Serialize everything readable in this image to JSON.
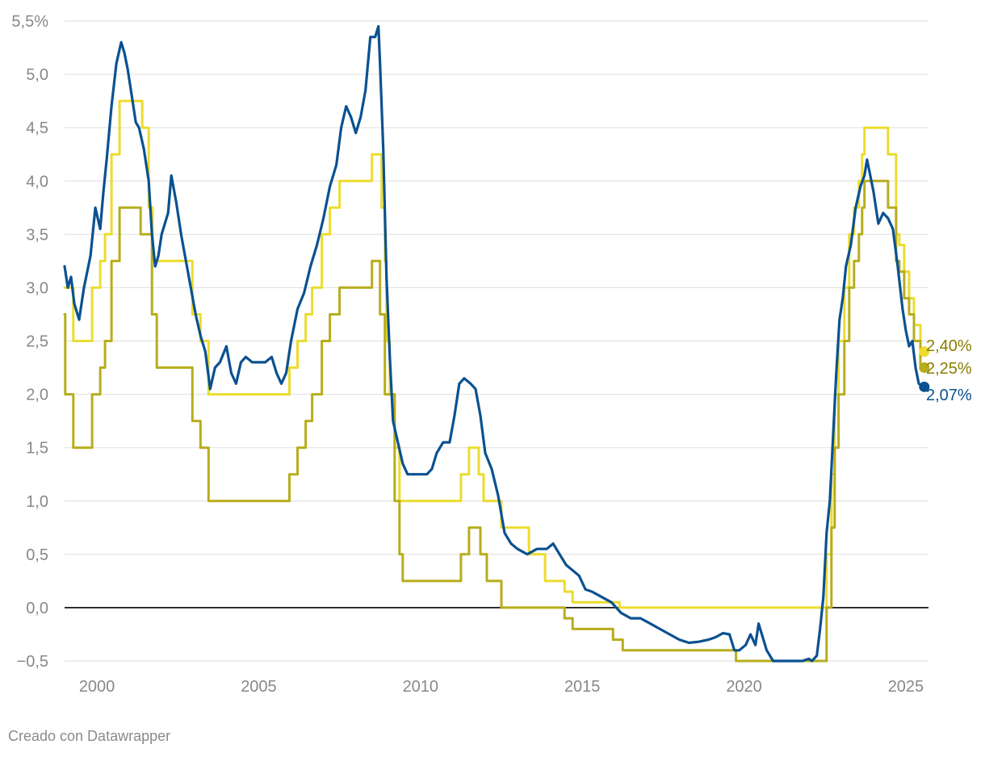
{
  "footer": {
    "credit": "Creado con Datawrapper"
  },
  "chart_data": {
    "type": "line",
    "title": "",
    "xlabel": "",
    "ylabel": "",
    "xlim": [
      1999,
      2025.7
    ],
    "ylim": [
      -0.5,
      5.5
    ],
    "grid": true,
    "legend": "none",
    "y_ticks": [
      {
        "value": 5.5,
        "label": "5,5%"
      },
      {
        "value": 5.0,
        "label": "5,0"
      },
      {
        "value": 4.5,
        "label": "4,5"
      },
      {
        "value": 4.0,
        "label": "4,0"
      },
      {
        "value": 3.5,
        "label": "3,5"
      },
      {
        "value": 3.0,
        "label": "3,0"
      },
      {
        "value": 2.5,
        "label": "2,5"
      },
      {
        "value": 2.0,
        "label": "2,0"
      },
      {
        "value": 1.5,
        "label": "1,5"
      },
      {
        "value": 1.0,
        "label": "1,0"
      },
      {
        "value": 0.5,
        "label": "0,5"
      },
      {
        "value": 0.0,
        "label": "0,0"
      },
      {
        "value": -0.5,
        "label": "−0,5"
      }
    ],
    "x_ticks": [
      {
        "value": 2000,
        "label": "2000"
      },
      {
        "value": 2005,
        "label": "2005"
      },
      {
        "value": 2010,
        "label": "2010"
      },
      {
        "value": 2015,
        "label": "2015"
      },
      {
        "value": 2020,
        "label": "2020"
      },
      {
        "value": 2025,
        "label": "2025"
      }
    ],
    "series": [
      {
        "color": "#ebdc2e",
        "style": "step",
        "end_label": "2,40%",
        "end_label_color": "#8a7d00",
        "points": [
          [
            1999.0,
            3.0
          ],
          [
            1999.27,
            2.5
          ],
          [
            1999.85,
            3.0
          ],
          [
            2000.1,
            3.25
          ],
          [
            2000.25,
            3.5
          ],
          [
            2000.45,
            4.25
          ],
          [
            2000.7,
            4.75
          ],
          [
            2001.4,
            4.5
          ],
          [
            2001.6,
            3.75
          ],
          [
            2001.72,
            3.25
          ],
          [
            2002.95,
            2.75
          ],
          [
            2003.2,
            2.5
          ],
          [
            2003.45,
            2.0
          ],
          [
            2005.95,
            2.25
          ],
          [
            2006.2,
            2.5
          ],
          [
            2006.45,
            2.75
          ],
          [
            2006.65,
            3.0
          ],
          [
            2006.95,
            3.5
          ],
          [
            2007.2,
            3.75
          ],
          [
            2007.5,
            4.0
          ],
          [
            2008.5,
            4.25
          ],
          [
            2008.8,
            3.75
          ],
          [
            2008.9,
            3.25
          ],
          [
            2008.95,
            2.5
          ],
          [
            2009.05,
            2.0
          ],
          [
            2009.2,
            1.5
          ],
          [
            2009.35,
            1.0
          ],
          [
            2011.25,
            1.25
          ],
          [
            2011.5,
            1.5
          ],
          [
            2011.8,
            1.25
          ],
          [
            2011.95,
            1.0
          ],
          [
            2012.5,
            0.75
          ],
          [
            2013.35,
            0.5
          ],
          [
            2013.85,
            0.25
          ],
          [
            2014.45,
            0.15
          ],
          [
            2014.7,
            0.05
          ],
          [
            2016.15,
            0.0
          ],
          [
            2022.55,
            0.5
          ],
          [
            2022.7,
            1.25
          ],
          [
            2022.8,
            2.0
          ],
          [
            2022.92,
            2.5
          ],
          [
            2023.1,
            3.0
          ],
          [
            2023.25,
            3.5
          ],
          [
            2023.4,
            3.75
          ],
          [
            2023.55,
            4.0
          ],
          [
            2023.65,
            4.25
          ],
          [
            2023.72,
            4.5
          ],
          [
            2024.45,
            4.25
          ],
          [
            2024.7,
            3.5
          ],
          [
            2024.8,
            3.4
          ],
          [
            2024.95,
            3.15
          ],
          [
            2025.1,
            2.9
          ],
          [
            2025.25,
            2.65
          ],
          [
            2025.45,
            2.4
          ],
          [
            2025.52,
            2.4
          ]
        ]
      },
      {
        "color": "#b7ad1c",
        "style": "step",
        "end_label": "2,25%",
        "end_label_color": "#8a7d00",
        "points": [
          [
            1999.0,
            2.75
          ],
          [
            1999.02,
            2.0
          ],
          [
            1999.27,
            1.5
          ],
          [
            1999.85,
            2.0
          ],
          [
            2000.1,
            2.25
          ],
          [
            2000.25,
            2.5
          ],
          [
            2000.45,
            3.25
          ],
          [
            2000.7,
            3.75
          ],
          [
            2001.35,
            3.5
          ],
          [
            2001.7,
            2.75
          ],
          [
            2001.85,
            2.25
          ],
          [
            2002.95,
            1.75
          ],
          [
            2003.2,
            1.5
          ],
          [
            2003.45,
            1.0
          ],
          [
            2005.95,
            1.25
          ],
          [
            2006.2,
            1.5
          ],
          [
            2006.45,
            1.75
          ],
          [
            2006.65,
            2.0
          ],
          [
            2006.95,
            2.5
          ],
          [
            2007.2,
            2.75
          ],
          [
            2007.5,
            3.0
          ],
          [
            2008.5,
            3.25
          ],
          [
            2008.75,
            2.75
          ],
          [
            2008.9,
            2.0
          ],
          [
            2009.2,
            1.0
          ],
          [
            2009.35,
            0.5
          ],
          [
            2009.45,
            0.25
          ],
          [
            2011.25,
            0.5
          ],
          [
            2011.5,
            0.75
          ],
          [
            2011.85,
            0.5
          ],
          [
            2012.05,
            0.25
          ],
          [
            2012.5,
            0.0
          ],
          [
            2014.45,
            -0.1
          ],
          [
            2014.7,
            -0.2
          ],
          [
            2015.95,
            -0.3
          ],
          [
            2016.25,
            -0.4
          ],
          [
            2019.75,
            -0.5
          ],
          [
            2022.55,
            0.0
          ],
          [
            2022.7,
            0.75
          ],
          [
            2022.8,
            1.5
          ],
          [
            2022.92,
            2.0
          ],
          [
            2023.1,
            2.5
          ],
          [
            2023.25,
            3.0
          ],
          [
            2023.4,
            3.25
          ],
          [
            2023.55,
            3.5
          ],
          [
            2023.65,
            3.75
          ],
          [
            2023.72,
            4.0
          ],
          [
            2024.45,
            3.75
          ],
          [
            2024.7,
            3.25
          ],
          [
            2024.8,
            3.15
          ],
          [
            2024.95,
            2.9
          ],
          [
            2025.1,
            2.75
          ],
          [
            2025.25,
            2.5
          ],
          [
            2025.45,
            2.25
          ],
          [
            2025.52,
            2.25
          ]
        ]
      },
      {
        "color": "#0b5191",
        "style": "line",
        "end_label": "2,07%",
        "end_label_color": "#0b5191",
        "points": [
          [
            1999.0,
            3.2
          ],
          [
            1999.1,
            3.0
          ],
          [
            1999.2,
            3.1
          ],
          [
            1999.3,
            2.85
          ],
          [
            1999.45,
            2.7
          ],
          [
            1999.6,
            3.0
          ],
          [
            1999.8,
            3.3
          ],
          [
            1999.95,
            3.75
          ],
          [
            2000.1,
            3.55
          ],
          [
            2000.2,
            3.9
          ],
          [
            2000.3,
            4.2
          ],
          [
            2000.45,
            4.7
          ],
          [
            2000.6,
            5.1
          ],
          [
            2000.75,
            5.3
          ],
          [
            2000.85,
            5.2
          ],
          [
            2000.95,
            5.05
          ],
          [
            2001.1,
            4.75
          ],
          [
            2001.2,
            4.55
          ],
          [
            2001.3,
            4.5
          ],
          [
            2001.45,
            4.3
          ],
          [
            2001.6,
            4.0
          ],
          [
            2001.7,
            3.5
          ],
          [
            2001.8,
            3.2
          ],
          [
            2001.9,
            3.3
          ],
          [
            2002.0,
            3.5
          ],
          [
            2002.2,
            3.7
          ],
          [
            2002.3,
            4.05
          ],
          [
            2002.45,
            3.8
          ],
          [
            2002.6,
            3.5
          ],
          [
            2002.75,
            3.25
          ],
          [
            2002.9,
            3.0
          ],
          [
            2003.05,
            2.75
          ],
          [
            2003.2,
            2.55
          ],
          [
            2003.35,
            2.4
          ],
          [
            2003.5,
            2.05
          ],
          [
            2003.65,
            2.25
          ],
          [
            2003.8,
            2.3
          ],
          [
            2004.0,
            2.45
          ],
          [
            2004.15,
            2.2
          ],
          [
            2004.3,
            2.1
          ],
          [
            2004.45,
            2.3
          ],
          [
            2004.6,
            2.35
          ],
          [
            2004.8,
            2.3
          ],
          [
            2005.0,
            2.3
          ],
          [
            2005.2,
            2.3
          ],
          [
            2005.4,
            2.35
          ],
          [
            2005.55,
            2.2
          ],
          [
            2005.7,
            2.1
          ],
          [
            2005.85,
            2.2
          ],
          [
            2006.0,
            2.5
          ],
          [
            2006.2,
            2.8
          ],
          [
            2006.4,
            2.95
          ],
          [
            2006.6,
            3.2
          ],
          [
            2006.8,
            3.4
          ],
          [
            2007.0,
            3.65
          ],
          [
            2007.2,
            3.95
          ],
          [
            2007.4,
            4.15
          ],
          [
            2007.55,
            4.5
          ],
          [
            2007.7,
            4.7
          ],
          [
            2007.85,
            4.6
          ],
          [
            2008.0,
            4.45
          ],
          [
            2008.15,
            4.6
          ],
          [
            2008.3,
            4.85
          ],
          [
            2008.45,
            5.35
          ],
          [
            2008.6,
            5.35
          ],
          [
            2008.7,
            5.45
          ],
          [
            2008.75,
            5.1
          ],
          [
            2008.85,
            4.3
          ],
          [
            2008.95,
            3.1
          ],
          [
            2009.05,
            2.35
          ],
          [
            2009.15,
            1.75
          ],
          [
            2009.3,
            1.55
          ],
          [
            2009.45,
            1.35
          ],
          [
            2009.6,
            1.25
          ],
          [
            2009.8,
            1.25
          ],
          [
            2010.0,
            1.25
          ],
          [
            2010.2,
            1.25
          ],
          [
            2010.35,
            1.3
          ],
          [
            2010.5,
            1.45
          ],
          [
            2010.7,
            1.55
          ],
          [
            2010.9,
            1.55
          ],
          [
            2011.05,
            1.8
          ],
          [
            2011.2,
            2.1
          ],
          [
            2011.35,
            2.15
          ],
          [
            2011.55,
            2.1
          ],
          [
            2011.7,
            2.05
          ],
          [
            2011.85,
            1.8
          ],
          [
            2012.0,
            1.45
          ],
          [
            2012.2,
            1.3
          ],
          [
            2012.4,
            1.05
          ],
          [
            2012.6,
            0.7
          ],
          [
            2012.8,
            0.6
          ],
          [
            2013.0,
            0.55
          ],
          [
            2013.3,
            0.5
          ],
          [
            2013.6,
            0.55
          ],
          [
            2013.9,
            0.55
          ],
          [
            2014.1,
            0.6
          ],
          [
            2014.3,
            0.5
          ],
          [
            2014.5,
            0.4
          ],
          [
            2014.7,
            0.35
          ],
          [
            2014.9,
            0.3
          ],
          [
            2015.1,
            0.17
          ],
          [
            2015.3,
            0.15
          ],
          [
            2015.6,
            0.1
          ],
          [
            2015.9,
            0.05
          ],
          [
            2016.2,
            -0.05
          ],
          [
            2016.5,
            -0.1
          ],
          [
            2016.8,
            -0.1
          ],
          [
            2017.1,
            -0.15
          ],
          [
            2017.4,
            -0.2
          ],
          [
            2017.7,
            -0.25
          ],
          [
            2018.0,
            -0.3
          ],
          [
            2018.3,
            -0.33
          ],
          [
            2018.6,
            -0.32
          ],
          [
            2018.9,
            -0.3
          ],
          [
            2019.1,
            -0.28
          ],
          [
            2019.35,
            -0.24
          ],
          [
            2019.55,
            -0.25
          ],
          [
            2019.7,
            -0.4
          ],
          [
            2019.85,
            -0.4
          ],
          [
            2020.05,
            -0.35
          ],
          [
            2020.2,
            -0.25
          ],
          [
            2020.35,
            -0.35
          ],
          [
            2020.45,
            -0.15
          ],
          [
            2020.55,
            -0.25
          ],
          [
            2020.7,
            -0.4
          ],
          [
            2020.9,
            -0.5
          ],
          [
            2021.2,
            -0.5
          ],
          [
            2021.5,
            -0.5
          ],
          [
            2021.8,
            -0.5
          ],
          [
            2022.0,
            -0.48
          ],
          [
            2022.1,
            -0.5
          ],
          [
            2022.25,
            -0.45
          ],
          [
            2022.35,
            -0.2
          ],
          [
            2022.45,
            0.1
          ],
          [
            2022.55,
            0.7
          ],
          [
            2022.65,
            1.0
          ],
          [
            2022.75,
            1.6
          ],
          [
            2022.85,
            2.2
          ],
          [
            2022.95,
            2.7
          ],
          [
            2023.05,
            2.9
          ],
          [
            2023.15,
            3.2
          ],
          [
            2023.3,
            3.4
          ],
          [
            2023.45,
            3.75
          ],
          [
            2023.6,
            3.95
          ],
          [
            2023.72,
            4.05
          ],
          [
            2023.8,
            4.2
          ],
          [
            2023.9,
            4.05
          ],
          [
            2024.0,
            3.9
          ],
          [
            2024.15,
            3.6
          ],
          [
            2024.3,
            3.7
          ],
          [
            2024.45,
            3.65
          ],
          [
            2024.6,
            3.55
          ],
          [
            2024.75,
            3.2
          ],
          [
            2024.9,
            2.8
          ],
          [
            2025.0,
            2.6
          ],
          [
            2025.1,
            2.45
          ],
          [
            2025.2,
            2.5
          ],
          [
            2025.3,
            2.25
          ],
          [
            2025.4,
            2.1
          ],
          [
            2025.52,
            2.07
          ]
        ]
      }
    ]
  }
}
